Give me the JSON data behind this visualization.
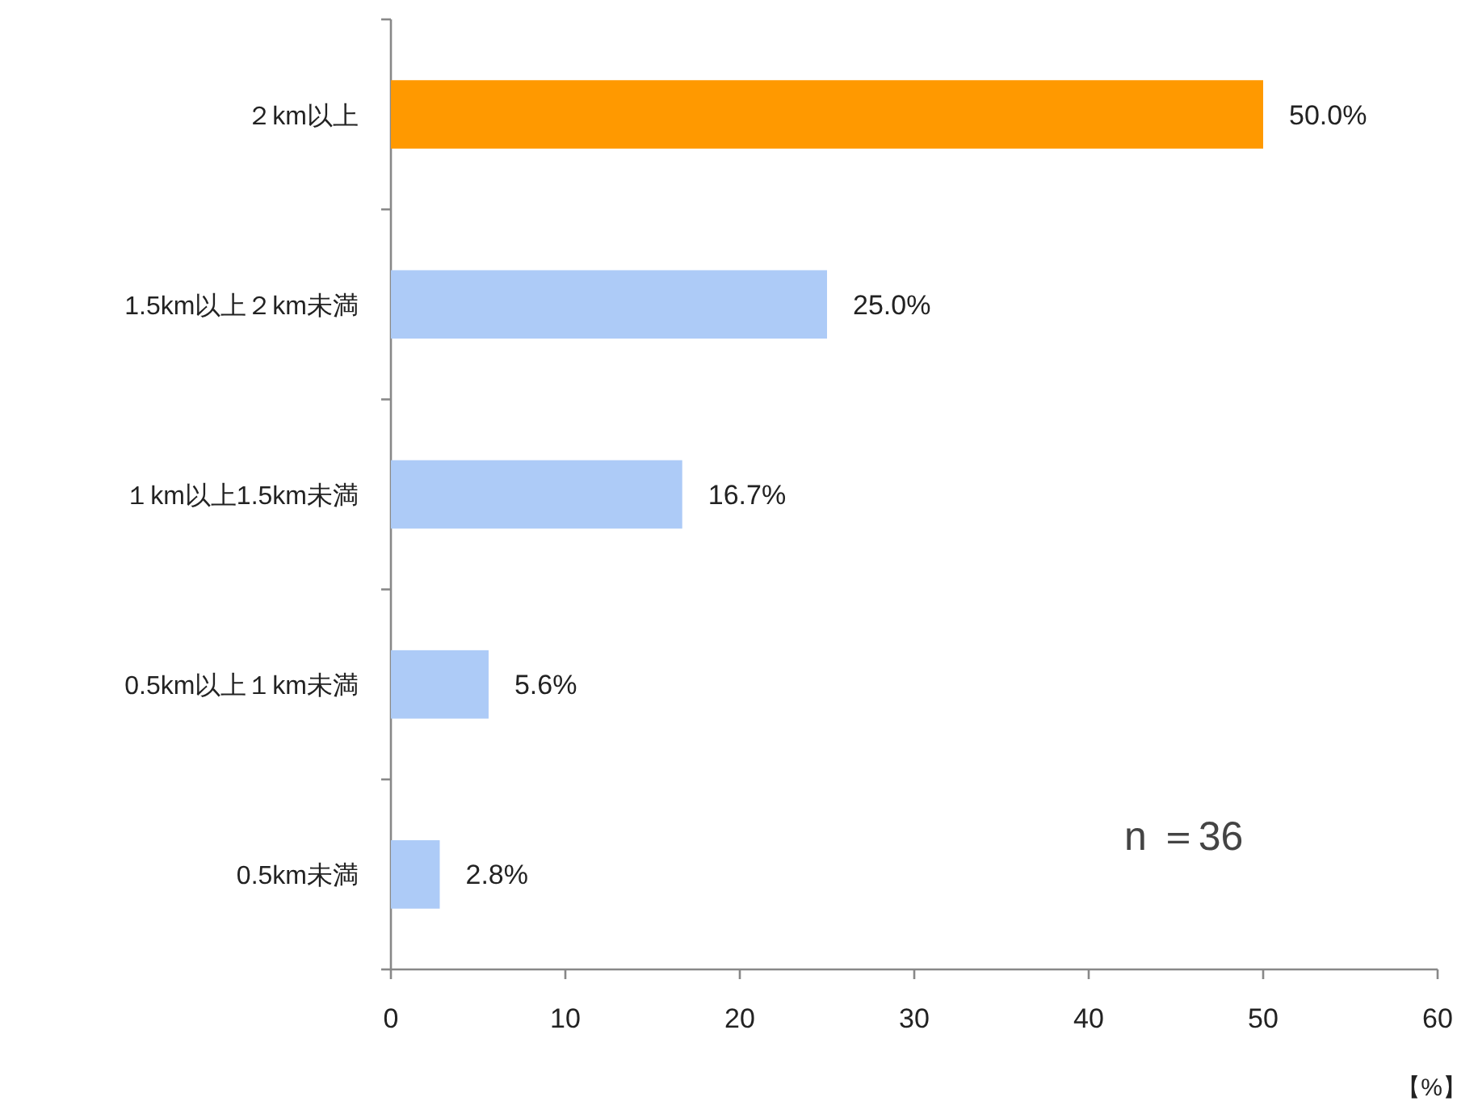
{
  "chart_data": {
    "type": "bar",
    "orientation": "horizontal",
    "categories": [
      "２km以上",
      "1.5km以上２km未満",
      "１km以上1.5km未満",
      "0.5km以上１km未満",
      "0.5km未満"
    ],
    "values": [
      50.0,
      25.0,
      16.7,
      5.6,
      2.8
    ],
    "colors": [
      "#ff9900",
      "#adcbf7",
      "#adcbf7",
      "#adcbf7",
      "#adcbf7"
    ],
    "value_labels": [
      "50.0%",
      "25.0%",
      "16.7%",
      "5.6%",
      "2.8%"
    ],
    "xlim": [
      0,
      60
    ],
    "xticks": [
      0,
      10,
      20,
      30,
      40,
      50,
      60
    ],
    "xlabel": "【%】",
    "annotations": [
      "n ＝36"
    ]
  }
}
